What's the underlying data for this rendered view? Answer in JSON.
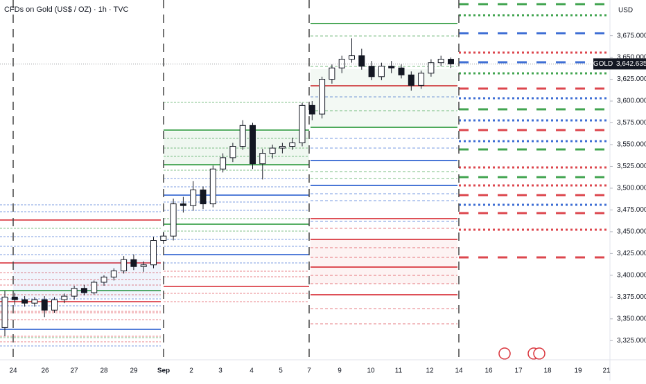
{
  "chart_data": {
    "type": "candlestick",
    "title": "CFDs on Gold (US$ / OZ) · 1h · TVC",
    "currency": "USD",
    "symbol": "GOLD",
    "last_price": {
      "value": 3642.635,
      "label": "3,642.635"
    },
    "up_color": "#131722",
    "down_color": "#131722",
    "xtick_labels": [
      "24",
      "26",
      "27",
      "28",
      "29",
      "Sep",
      "2",
      "3",
      "4",
      "5",
      "7",
      "9",
      "10",
      "11",
      "12",
      "14",
      "16",
      "17",
      "18",
      "19",
      "21"
    ],
    "open": [
      3340,
      3375,
      3372,
      3368,
      3372,
      3360,
      3372,
      3376,
      3385,
      3380,
      3392,
      3398,
      3405,
      3418,
      3410,
      3412,
      3440,
      3445,
      3482,
      3480,
      3498,
      3482,
      3522,
      3535,
      3548,
      3572,
      3528,
      3540,
      3546,
      3548,
      3552,
      3595,
      3585,
      3625,
      3638,
      3648,
      3652,
      3640,
      3628,
      3640,
      3638,
      3630,
      3618,
      3632,
      3644,
      3648
    ],
    "high": [
      3382,
      3380,
      3376,
      3375,
      3376,
      3375,
      3379,
      3388,
      3389,
      3394,
      3400,
      3408,
      3422,
      3424,
      3416,
      3444,
      3450,
      3488,
      3490,
      3508,
      3502,
      3526,
      3540,
      3552,
      3578,
      3575,
      3545,
      3550,
      3552,
      3558,
      3598,
      3600,
      3628,
      3642,
      3652,
      3672,
      3660,
      3646,
      3644,
      3646,
      3642,
      3634,
      3635,
      3648,
      3652,
      3650
    ],
    "low": [
      3330,
      3366,
      3364,
      3364,
      3352,
      3357,
      3368,
      3372,
      3377,
      3378,
      3388,
      3394,
      3402,
      3406,
      3404,
      3408,
      3436,
      3440,
      3472,
      3474,
      3476,
      3478,
      3518,
      3530,
      3544,
      3522,
      3510,
      3534,
      3540,
      3544,
      3548,
      3578,
      3580,
      3620,
      3632,
      3644,
      3636,
      3624,
      3624,
      3632,
      3626,
      3612,
      3614,
      3628,
      3640,
      3638
    ],
    "close": [
      3375,
      3372,
      3368,
      3372,
      3360,
      3372,
      3376,
      3385,
      3380,
      3392,
      3398,
      3405,
      3418,
      3410,
      3412,
      3440,
      3445,
      3482,
      3480,
      3498,
      3482,
      3522,
      3535,
      3548,
      3572,
      3528,
      3540,
      3546,
      3548,
      3552,
      3595,
      3585,
      3625,
      3638,
      3648,
      3652,
      3640,
      3628,
      3640,
      3638,
      3630,
      3618,
      3632,
      3644,
      3648,
      3642.635
    ],
    "ylim": [
      3303,
      3716
    ],
    "yticks": [
      {
        "value": 3325,
        "label": "3,325.000"
      },
      {
        "value": 3350,
        "label": "3,350.000"
      },
      {
        "value": 3375,
        "label": "3,375.000"
      },
      {
        "value": 3400,
        "label": "3,400.000"
      },
      {
        "value": 3425,
        "label": "3,425.000"
      },
      {
        "value": 3450,
        "label": "3,450.000"
      },
      {
        "value": 3475,
        "label": "3,475.000"
      },
      {
        "value": 3500,
        "label": "3,500.000"
      },
      {
        "value": 3525,
        "label": "3,525.000"
      },
      {
        "value": 3550,
        "label": "3,550.000"
      },
      {
        "value": 3575,
        "label": "3,575.000"
      },
      {
        "value": 3600,
        "label": "3,600.000"
      },
      {
        "value": 3625,
        "label": "3,625.000"
      },
      {
        "value": 3650,
        "label": "3,650.000"
      },
      {
        "value": 3675,
        "label": "3,675.000"
      }
    ]
  }
}
